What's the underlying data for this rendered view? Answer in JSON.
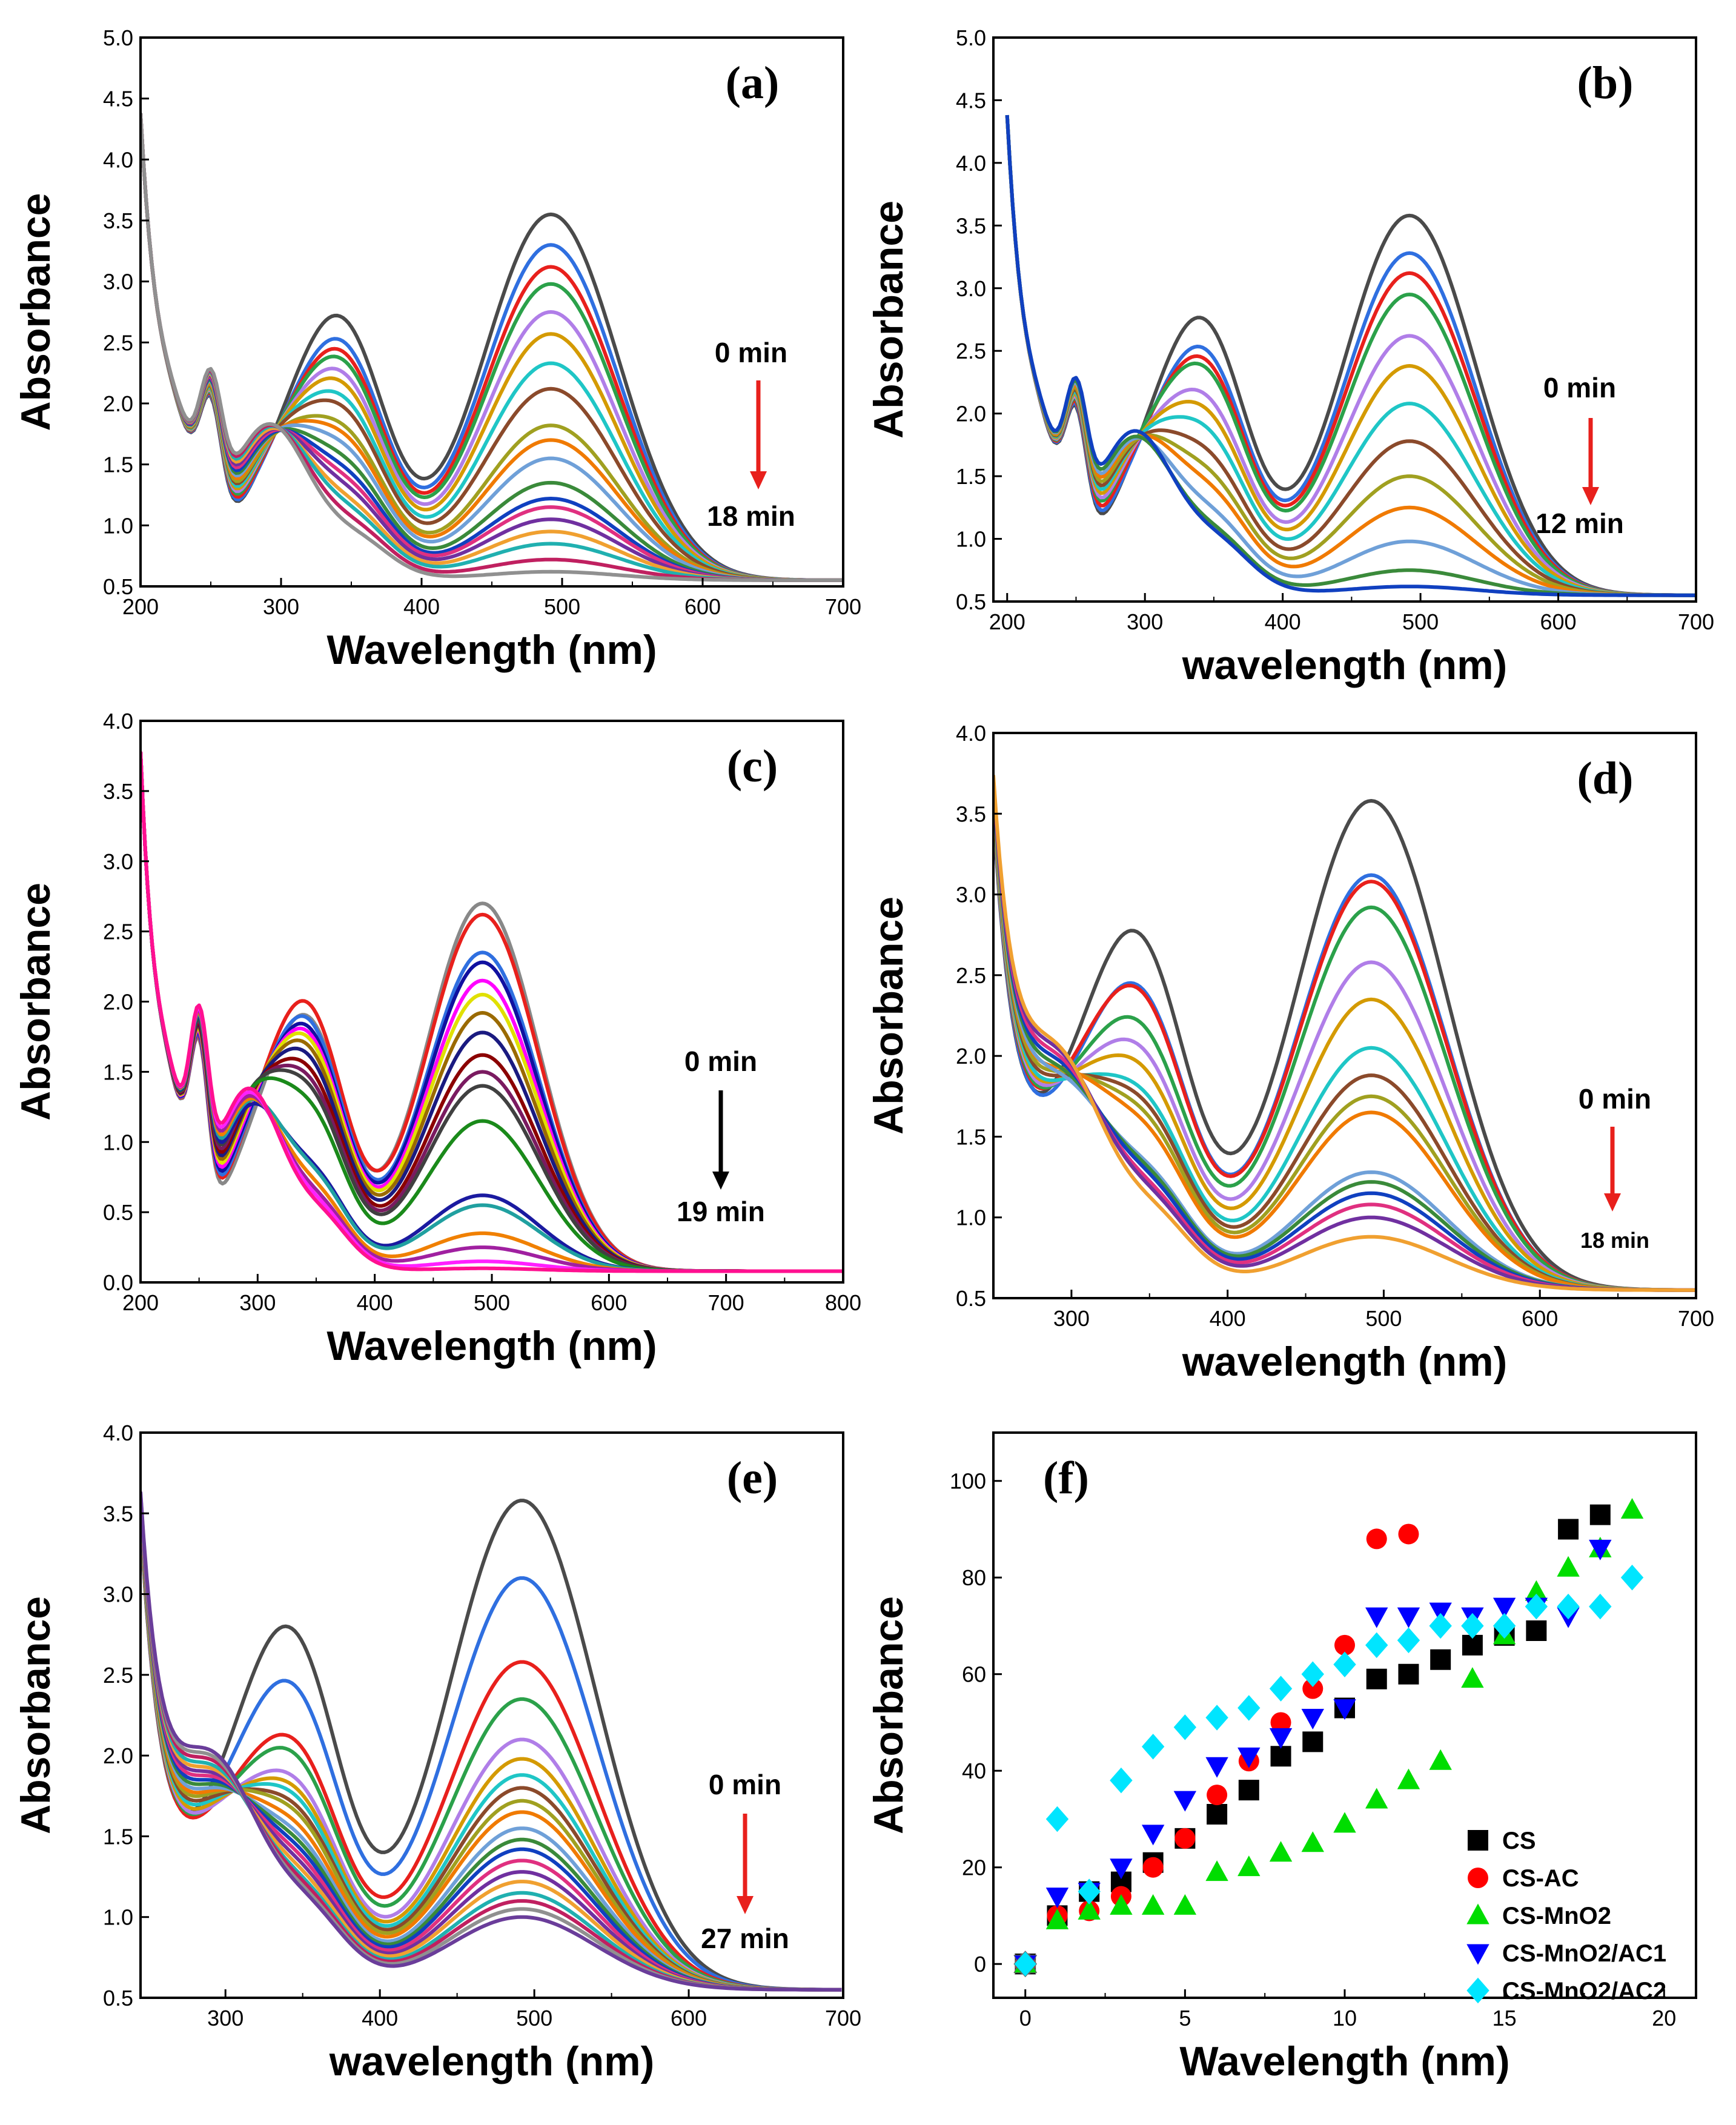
{
  "figure": {
    "panels": [
      {
        "id": "a",
        "label": "(a)"
      },
      {
        "id": "b",
        "label": "(b)"
      },
      {
        "id": "c",
        "label": "(c)"
      },
      {
        "id": "d",
        "label": "(d)"
      },
      {
        "id": "e",
        "label": "(e)"
      },
      {
        "id": "f",
        "label": "(f)"
      }
    ]
  },
  "chart_data": [
    {
      "panel": "(a)",
      "type": "line",
      "title": "",
      "xlabel": "Wavelength (nm)",
      "ylabel": "Absorbance",
      "xlim": [
        200,
        700
      ],
      "ylim": [
        0.5,
        5.0
      ],
      "xticks": [
        200,
        300,
        400,
        500,
        600,
        700
      ],
      "yticks": [
        0.5,
        1.0,
        1.5,
        2.0,
        2.5,
        3.0,
        3.5,
        4.0,
        4.5,
        5.0
      ],
      "annotation": {
        "start": "0 min",
        "end": "18 min",
        "arrow_color": "#e8201c"
      },
      "base_level": 0.55,
      "series": [
        {
          "peak500": 3.55,
          "peak340": 2.9
        },
        {
          "peak500": 3.3,
          "peak340": 2.68
        },
        {
          "peak500": 3.12,
          "peak340": 2.58
        },
        {
          "peak500": 2.98,
          "peak340": 2.5
        },
        {
          "peak500": 2.75,
          "peak340": 2.38
        },
        {
          "peak500": 2.57,
          "peak340": 2.28
        },
        {
          "peak500": 2.33,
          "peak340": 2.15
        },
        {
          "peak500": 2.12,
          "peak340": 2.05
        },
        {
          "peak500": 1.82,
          "peak340": 1.88
        },
        {
          "peak500": 1.7,
          "peak340": 1.8
        },
        {
          "peak500": 1.55,
          "peak340": 1.7
        },
        {
          "peak500": 1.35,
          "peak340": 1.58
        },
        {
          "peak500": 1.22,
          "peak340": 1.48
        },
        {
          "peak500": 1.15,
          "peak340": 1.4
        },
        {
          "peak500": 1.05,
          "peak340": 1.32
        },
        {
          "peak500": 0.95,
          "peak340": 1.22
        },
        {
          "peak500": 0.85,
          "peak340": 1.15
        },
        {
          "peak500": 0.72,
          "peak340": 1.05
        },
        {
          "peak500": 0.62,
          "peak340": 0.95
        }
      ]
    },
    {
      "panel": "(b)",
      "type": "line",
      "title": "",
      "xlabel": "wavelength (nm)",
      "ylabel": "Absorbance",
      "xlim": [
        190,
        700
      ],
      "ylim": [
        0.5,
        5.0
      ],
      "xticks": [
        200,
        300,
        400,
        500,
        600,
        700
      ],
      "yticks": [
        0.5,
        1.0,
        1.5,
        2.0,
        2.5,
        3.0,
        3.5,
        4.0,
        4.5,
        5.0
      ],
      "annotation": {
        "start": "0 min",
        "end": "12 min",
        "arrow_color": "#e8201c"
      },
      "base_level": 0.55,
      "series": [
        {
          "peak500": 3.58,
          "peak340": 2.95
        },
        {
          "peak500": 3.28,
          "peak340": 2.68
        },
        {
          "peak500": 3.12,
          "peak340": 2.58
        },
        {
          "peak500": 2.95,
          "peak340": 2.5
        },
        {
          "peak500": 2.62,
          "peak340": 2.25
        },
        {
          "peak500": 2.38,
          "peak340": 2.12
        },
        {
          "peak500": 2.08,
          "peak340": 1.95
        },
        {
          "peak500": 1.78,
          "peak340": 1.75
        },
        {
          "peak500": 1.5,
          "peak340": 1.58
        },
        {
          "peak500": 1.25,
          "peak340": 1.45
        },
        {
          "peak500": 0.98,
          "peak340": 1.25
        },
        {
          "peak500": 0.75,
          "peak340": 1.1
        },
        {
          "peak500": 0.62,
          "peak340": 1.05
        }
      ]
    },
    {
      "panel": "(c)",
      "type": "line",
      "title": "",
      "xlabel": "Wavelength (nm)",
      "ylabel": "Absorbance",
      "xlim": [
        200,
        800
      ],
      "ylim": [
        0.0,
        4.0
      ],
      "xticks": [
        200,
        300,
        400,
        500,
        600,
        700,
        800
      ],
      "yticks": [
        0.0,
        0.5,
        1.0,
        1.5,
        2.0,
        2.5,
        3.0,
        3.5,
        4.0
      ],
      "annotation": {
        "start": "0 min",
        "end": "19 min",
        "arrow_color": "#000000"
      },
      "base_level": 0.08,
      "series": [
        {
          "peak500": 2.7,
          "peak340": 2.05
        },
        {
          "peak500": 2.62,
          "peak340": 2.15
        },
        {
          "peak500": 2.35,
          "peak340": 2.02
        },
        {
          "peak500": 2.28,
          "peak340": 1.95
        },
        {
          "peak500": 2.15,
          "peak340": 1.9
        },
        {
          "peak500": 2.05,
          "peak340": 1.85
        },
        {
          "peak500": 1.92,
          "peak340": 1.78
        },
        {
          "peak500": 1.78,
          "peak340": 1.7
        },
        {
          "peak500": 1.62,
          "peak340": 1.6
        },
        {
          "peak500": 1.5,
          "peak340": 1.52
        },
        {
          "peak500": 1.4,
          "peak340": 1.45
        },
        {
          "peak500": 1.15,
          "peak340": 1.32
        },
        {
          "peak500": 0.62,
          "peak340": 0.85
        },
        {
          "peak500": 0.55,
          "peak340": 0.82
        },
        {
          "peak500": 0.35,
          "peak340": 0.72
        },
        {
          "peak500": 0.25,
          "peak340": 0.65
        },
        {
          "peak500": 0.15,
          "peak340": 0.6
        },
        {
          "peak500": 0.1,
          "peak340": 0.55
        }
      ]
    },
    {
      "panel": "(d)",
      "type": "line",
      "title": "",
      "xlabel": "wavelength (nm)",
      "ylabel": "Absorbance",
      "xlim": [
        250,
        700
      ],
      "ylim": [
        0.5,
        4.0
      ],
      "xticks": [
        300,
        400,
        500,
        600,
        700
      ],
      "yticks": [
        0.5,
        1.0,
        1.5,
        2.0,
        2.5,
        3.0,
        3.5,
        4.0
      ],
      "annotation": {
        "start": "0 min",
        "end": "18 min",
        "arrow_color": "#e8201c"
      },
      "base_level": 0.55,
      "series": [
        {
          "peak500": 3.58,
          "peak340": 2.95
        },
        {
          "peak500": 3.12,
          "peak340": 2.58
        },
        {
          "peak500": 3.08,
          "peak340": 2.55
        },
        {
          "peak500": 2.92,
          "peak340": 2.32
        },
        {
          "peak500": 2.58,
          "peak340": 2.15
        },
        {
          "peak500": 2.35,
          "peak340": 2.02
        },
        {
          "peak500": 2.05,
          "peak340": 1.85
        },
        {
          "peak500": 1.88,
          "peak340": 1.78
        },
        {
          "peak500": 1.75,
          "peak340": 1.7
        },
        {
          "peak500": 1.65,
          "peak340": 1.62
        },
        {
          "peak500": 1.28,
          "peak340": 1.35
        },
        {
          "peak500": 1.22,
          "peak340": 1.32
        },
        {
          "peak500": 1.15,
          "peak340": 1.28
        },
        {
          "peak500": 1.08,
          "peak340": 1.22
        },
        {
          "peak500": 1.0,
          "peak340": 1.18
        },
        {
          "peak500": 0.88,
          "peak340": 1.1
        }
      ]
    },
    {
      "panel": "(e)",
      "type": "line",
      "title": "",
      "xlabel": "wavelength (nm)",
      "ylabel": "Absorbance",
      "xlim": [
        245,
        700
      ],
      "ylim": [
        0.5,
        4.0
      ],
      "xticks": [
        300,
        400,
        500,
        600,
        700
      ],
      "yticks": [
        0.5,
        1.0,
        1.5,
        2.0,
        2.5,
        3.0,
        3.5,
        4.0
      ],
      "annotation": {
        "start": "0 min",
        "end": "27 min",
        "arrow_color": "#e8201c"
      },
      "base_level": 0.55,
      "series": [
        {
          "peak500": 3.58,
          "peak340": 2.98
        },
        {
          "peak500": 3.1,
          "peak340": 2.6
        },
        {
          "peak500": 2.58,
          "peak340": 2.22
        },
        {
          "peak500": 2.35,
          "peak340": 2.12
        },
        {
          "peak500": 2.1,
          "peak340": 1.95
        },
        {
          "peak500": 1.98,
          "peak340": 1.88
        },
        {
          "peak500": 1.88,
          "peak340": 1.82
        },
        {
          "peak500": 1.8,
          "peak340": 1.75
        },
        {
          "peak500": 1.72,
          "peak340": 1.7
        },
        {
          "peak500": 1.65,
          "peak340": 1.62
        },
        {
          "peak500": 1.55,
          "peak340": 1.55
        },
        {
          "peak500": 1.48,
          "peak340": 1.5
        },
        {
          "peak500": 1.42,
          "peak340": 1.45
        },
        {
          "peak500": 1.35,
          "peak340": 1.4
        },
        {
          "peak500": 1.28,
          "peak340": 1.35
        },
        {
          "peak500": 1.22,
          "peak340": 1.3
        },
        {
          "peak500": 1.15,
          "peak340": 1.25
        },
        {
          "peak500": 1.1,
          "peak340": 1.22
        },
        {
          "peak500": 1.05,
          "peak340": 1.18
        },
        {
          "peak500": 1.0,
          "peak340": 1.15
        }
      ]
    },
    {
      "panel": "(f)",
      "type": "scatter",
      "title": "",
      "xlabel": "Wavelength (nm)",
      "ylabel": "Absorbance",
      "xlim": [
        -1,
        21
      ],
      "ylim": [
        -7,
        110
      ],
      "xticks": [
        0,
        5,
        10,
        15,
        20
      ],
      "yticks": [
        0,
        20,
        40,
        60,
        80,
        100
      ],
      "series": [
        {
          "name": "CS",
          "marker": "square",
          "color": "#000000",
          "x": [
            0,
            1,
            2,
            3,
            4,
            5,
            6,
            7,
            8,
            9,
            10,
            11,
            12,
            13,
            14,
            15,
            16,
            17,
            18
          ],
          "y": [
            0,
            10,
            15,
            17,
            21,
            26,
            31,
            36,
            43,
            46,
            53,
            59,
            60,
            63,
            66,
            68,
            69,
            90,
            93
          ]
        },
        {
          "name": "CS-AC",
          "marker": "circle",
          "color": "#ff0000",
          "x": [
            0,
            1,
            2,
            3,
            4,
            5,
            6,
            7,
            8,
            9,
            10,
            11,
            12
          ],
          "y": [
            0,
            10,
            11,
            14,
            20,
            26,
            35,
            42,
            50,
            57,
            66,
            88,
            89
          ]
        },
        {
          "name": "CS-MnO2",
          "marker": "triangle-up",
          "color": "#00dd00",
          "x": [
            0,
            1,
            2,
            3,
            4,
            5,
            6,
            7,
            8,
            9,
            10,
            11,
            12,
            13,
            14,
            15,
            16,
            17,
            18,
            19
          ],
          "y": [
            0,
            9,
            11,
            12,
            12,
            12,
            19,
            20,
            23,
            25,
            29,
            34,
            38,
            42,
            59,
            68,
            77,
            82,
            86,
            94
          ]
        },
        {
          "name": "CS-MnO2/AC1",
          "marker": "triangle-down",
          "color": "#0000ff",
          "x": [
            0,
            1,
            2,
            3,
            4,
            5,
            6,
            7,
            8,
            9,
            10,
            11,
            12,
            13,
            14,
            15,
            16,
            17,
            18
          ],
          "y": [
            0,
            14,
            15,
            20,
            27,
            34,
            41,
            43,
            47,
            51,
            53,
            72,
            72,
            73,
            72,
            74,
            74,
            72,
            86
          ]
        },
        {
          "name": "CS-MnO2/AC2",
          "marker": "diamond",
          "color": "#00e5ff",
          "x": [
            0,
            1,
            2,
            3,
            4,
            5,
            6,
            7,
            8,
            9,
            10,
            11,
            12,
            13,
            14,
            15,
            16,
            17,
            18,
            19
          ],
          "y": [
            0,
            30,
            15,
            38,
            45,
            49,
            51,
            53,
            57,
            60,
            62,
            66,
            67,
            70,
            70,
            70,
            74,
            74,
            74,
            80
          ]
        }
      ],
      "legend": {
        "position": "bottom-right"
      }
    }
  ]
}
